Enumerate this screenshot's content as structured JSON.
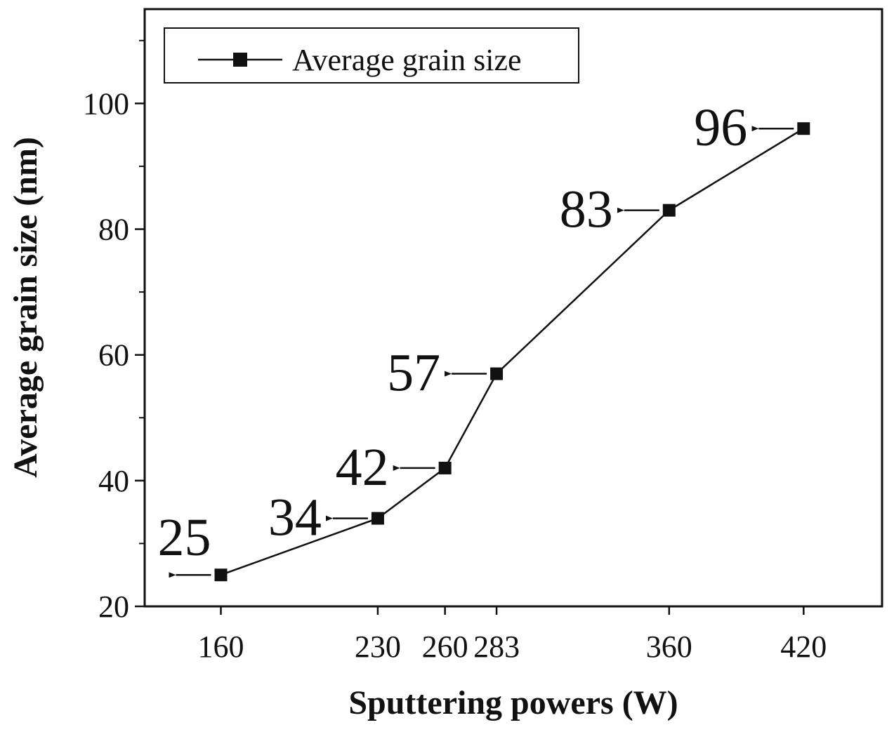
{
  "chart_data": {
    "type": "line",
    "title": "",
    "xlabel": "Sputtering powers (W)",
    "ylabel": "Average grain size (nm)",
    "x": [
      160,
      230,
      260,
      283,
      360,
      420
    ],
    "x_tick_labels": [
      "160",
      "230",
      "260",
      "283",
      "360",
      "420"
    ],
    "xlim": [
      126,
      455
    ],
    "ylim": [
      20,
      115
    ],
    "y_ticks": [
      20,
      40,
      60,
      80,
      100
    ],
    "y_tick_labels": [
      "20",
      "40",
      "60",
      "80",
      "100"
    ],
    "y_minor_step": 10,
    "grid": false,
    "legend_position": "top-left",
    "series": [
      {
        "name": "Average grain size",
        "values": [
          25,
          34,
          42,
          57,
          83,
          96
        ],
        "marker": "square",
        "color": "#111111"
      }
    ],
    "annotations": [
      {
        "text": "25",
        "x": 160,
        "y": 25
      },
      {
        "text": "34",
        "x": 230,
        "y": 34
      },
      {
        "text": "42",
        "x": 260,
        "y": 42
      },
      {
        "text": "57",
        "x": 283,
        "y": 57
      },
      {
        "text": "83",
        "x": 360,
        "y": 83
      },
      {
        "text": "96",
        "x": 420,
        "y": 96
      }
    ]
  }
}
